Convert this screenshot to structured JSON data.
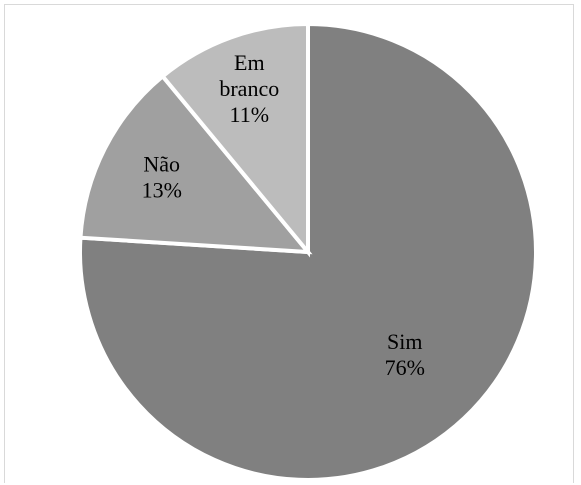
{
  "chart_data": {
    "type": "pie",
    "title": "",
    "start_angle_deg": 0,
    "direction": "clockwise",
    "slices": [
      {
        "label": "Sim",
        "value": 76,
        "value_label": "76%",
        "color": "#808080"
      },
      {
        "label": "Não",
        "value": 13,
        "value_label": "13%",
        "color": "#a0a0a0"
      },
      {
        "label": "Em branco",
        "label_lines": [
          "Em",
          "branco"
        ],
        "value": 11,
        "value_label": "11%",
        "color": "#bcbcbc"
      }
    ],
    "legend": "none",
    "data_labels": "inside"
  }
}
